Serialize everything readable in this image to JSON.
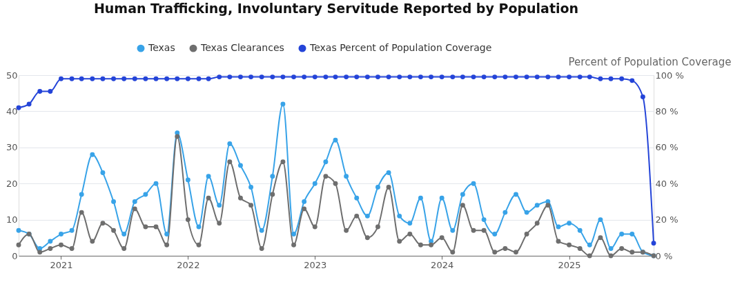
{
  "chart_data": {
    "type": "line",
    "title": "Human Trafficking, Involuntary Servitude Reported by Population",
    "y2label": "Percent of Population Coverage",
    "x": [
      "2020-09",
      "2020-10",
      "2020-11",
      "2020-12",
      "2021-01",
      "2021-02",
      "2021-03",
      "2021-04",
      "2021-05",
      "2021-06",
      "2021-07",
      "2021-08",
      "2021-09",
      "2021-10",
      "2021-11",
      "2021-12",
      "2022-01",
      "2022-02",
      "2022-03",
      "2022-04",
      "2022-05",
      "2022-06",
      "2022-07",
      "2022-08",
      "2022-09",
      "2022-10",
      "2022-11",
      "2022-12",
      "2023-01",
      "2023-02",
      "2023-03",
      "2023-04",
      "2023-05",
      "2023-06",
      "2023-07",
      "2023-08",
      "2023-09",
      "2023-10",
      "2023-11",
      "2023-12",
      "2024-01",
      "2024-02",
      "2024-03",
      "2024-04",
      "2024-05",
      "2024-06",
      "2024-07",
      "2024-08",
      "2024-09",
      "2024-10",
      "2024-11",
      "2024-12",
      "2025-01",
      "2025-02",
      "2025-03",
      "2025-04",
      "2025-05",
      "2025-06",
      "2025-07",
      "2025-08",
      "2025-09"
    ],
    "series": [
      {
        "name": "Texas",
        "color": "#38a3e8",
        "values": [
          7,
          6,
          2,
          4,
          6,
          7,
          17,
          28,
          23,
          15,
          6,
          15,
          17,
          20,
          6,
          34,
          21,
          8,
          22,
          14,
          31,
          25,
          19,
          7,
          22,
          42,
          6,
          15,
          20,
          26,
          32,
          22,
          16,
          11,
          19,
          23,
          11,
          9,
          16,
          4,
          16,
          7,
          17,
          20,
          10,
          6,
          12,
          17,
          12,
          14,
          15,
          8,
          9,
          7,
          3,
          10,
          2,
          6,
          6,
          1,
          0
        ]
      },
      {
        "name": "Texas Clearances",
        "color": "#6e6e6e",
        "values": [
          3,
          6,
          1,
          2,
          3,
          2,
          12,
          4,
          9,
          7,
          2,
          13,
          8,
          8,
          3,
          33,
          10,
          3,
          16,
          9,
          26,
          16,
          14,
          2,
          17,
          26,
          3,
          13,
          8,
          22,
          20,
          7,
          11,
          5,
          8,
          19,
          4,
          6,
          3,
          3,
          5,
          1,
          14,
          7,
          7,
          1,
          2,
          1,
          6,
          9,
          14,
          4,
          3,
          2,
          0,
          5,
          0,
          2,
          1,
          1,
          0
        ]
      },
      {
        "name": "Texas Percent of Population Coverage",
        "color": "#2444d8",
        "axis": "y2",
        "values": [
          82,
          84,
          91,
          91,
          98,
          98,
          98,
          98,
          98,
          98,
          98,
          98,
          98,
          98,
          98,
          98,
          98,
          98,
          98,
          99,
          99,
          99,
          99,
          99,
          99,
          99,
          99,
          99,
          99,
          99,
          99,
          99,
          99,
          99,
          99,
          99,
          99,
          99,
          99,
          99,
          99,
          99,
          99,
          99,
          99,
          99,
          99,
          99,
          99,
          99,
          99,
          99,
          99,
          99,
          99,
          98,
          98,
          98,
          97,
          88,
          7
        ]
      }
    ],
    "xlim": [
      "2020-09",
      "2025-09"
    ],
    "xticks": [
      "2021",
      "2022",
      "2023",
      "2024",
      "2025"
    ],
    "ylim": [
      0,
      50
    ],
    "yticks": [
      0,
      10,
      20,
      30,
      40,
      50
    ],
    "y2lim": [
      0,
      100
    ],
    "y2ticks": [
      {
        "value": 0,
        "label": "0 %"
      },
      {
        "value": 20,
        "label": "20 %"
      },
      {
        "value": 40,
        "label": "40 %"
      },
      {
        "value": 60,
        "label": "60 %"
      },
      {
        "value": 80,
        "label": "80 %"
      },
      {
        "value": 100,
        "label": "100 %"
      }
    ],
    "grid": "y",
    "legend": "top",
    "marker": "circle",
    "line_style": "solid"
  }
}
